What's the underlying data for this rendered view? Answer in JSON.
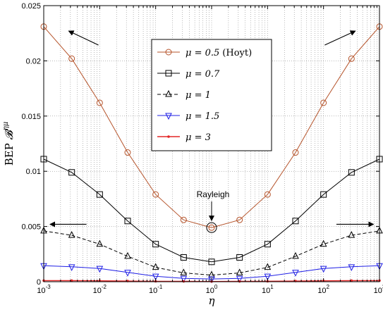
{
  "chart_data": {
    "type": "line",
    "xlabel": "η",
    "ylabel": "BEP 𝓑^{ημ}",
    "ylabel_prefix": "BEP ",
    "ylabel_symbol": "𝓑",
    "ylabel_sup": "ημ",
    "xscale": "log",
    "xlim": [
      0.001,
      1000
    ],
    "ylim": [
      0,
      0.025
    ],
    "grid": true,
    "legend_position": "top-center",
    "x_ticks": [
      0.001,
      0.01,
      0.1,
      1,
      10,
      100,
      1000
    ],
    "x_tick_labels": [
      {
        "base": "10",
        "exp": "-3"
      },
      {
        "base": "10",
        "exp": "-2"
      },
      {
        "base": "10",
        "exp": "-1"
      },
      {
        "base": "10",
        "exp": "0"
      },
      {
        "base": "10",
        "exp": "1"
      },
      {
        "base": "10",
        "exp": "2"
      },
      {
        "base": "10",
        "exp": "3"
      }
    ],
    "y_ticks": [
      0,
      0.005,
      0.01,
      0.015,
      0.02,
      0.025
    ],
    "y_tick_labels": [
      "0",
      "0.005",
      "0.01",
      "0.015",
      "0.02",
      "0.025"
    ],
    "x": [
      0.001,
      0.003162,
      0.01,
      0.03162,
      0.1,
      0.3162,
      1,
      3.162,
      10,
      31.62,
      100,
      316.2,
      1000
    ],
    "series": [
      {
        "name": "μ = 0.5 (Hoyt)",
        "label_math": "μ = 0.5",
        "label_suffix": "(Hoyt)",
        "color": "#b5532a",
        "marker": "circle",
        "dash": "solid",
        "values": [
          0.0231,
          0.0202,
          0.0162,
          0.0117,
          0.0079,
          0.0056,
          0.0049,
          0.0056,
          0.0079,
          0.0117,
          0.0162,
          0.0202,
          0.0231
        ]
      },
      {
        "name": "μ = 0.7",
        "label_math": "μ = 0.7",
        "label_suffix": "",
        "color": "#000000",
        "marker": "square",
        "dash": "solid",
        "values": [
          0.0111,
          0.0099,
          0.0079,
          0.0055,
          0.0034,
          0.0022,
          0.0018,
          0.0022,
          0.0034,
          0.0055,
          0.0079,
          0.0099,
          0.0111
        ]
      },
      {
        "name": "μ = 1",
        "label_math": "μ = 1",
        "label_suffix": "",
        "color": "#000000",
        "marker": "triangle-up",
        "dash": "dashed",
        "values": [
          0.0046,
          0.0042,
          0.0034,
          0.0023,
          0.0013,
          0.0008,
          0.0006,
          0.0008,
          0.0013,
          0.0023,
          0.0034,
          0.0042,
          0.0046
        ]
      },
      {
        "name": "μ = 1.5",
        "label_math": "μ = 1.5",
        "label_suffix": "",
        "color": "#1f1fe6",
        "marker": "triangle-down",
        "dash": "solid",
        "values": [
          0.00145,
          0.00135,
          0.0012,
          0.00085,
          0.0005,
          0.0003,
          0.00025,
          0.0003,
          0.0005,
          0.00085,
          0.0012,
          0.00135,
          0.00145
        ]
      },
      {
        "name": "μ = 3",
        "label_math": "μ = 3",
        "label_suffix": "",
        "color": "#e32626",
        "marker": "dot",
        "dash": "solid",
        "values": [
          0.0001,
          0.0001,
          8e-05,
          6e-05,
          4e-05,
          3e-05,
          2e-05,
          3e-05,
          4e-05,
          6e-05,
          8e-05,
          0.0001,
          0.0001
        ]
      }
    ],
    "annotations": [
      {
        "text": "Rayleigh",
        "x": 1,
        "y": 0.0049
      }
    ]
  }
}
